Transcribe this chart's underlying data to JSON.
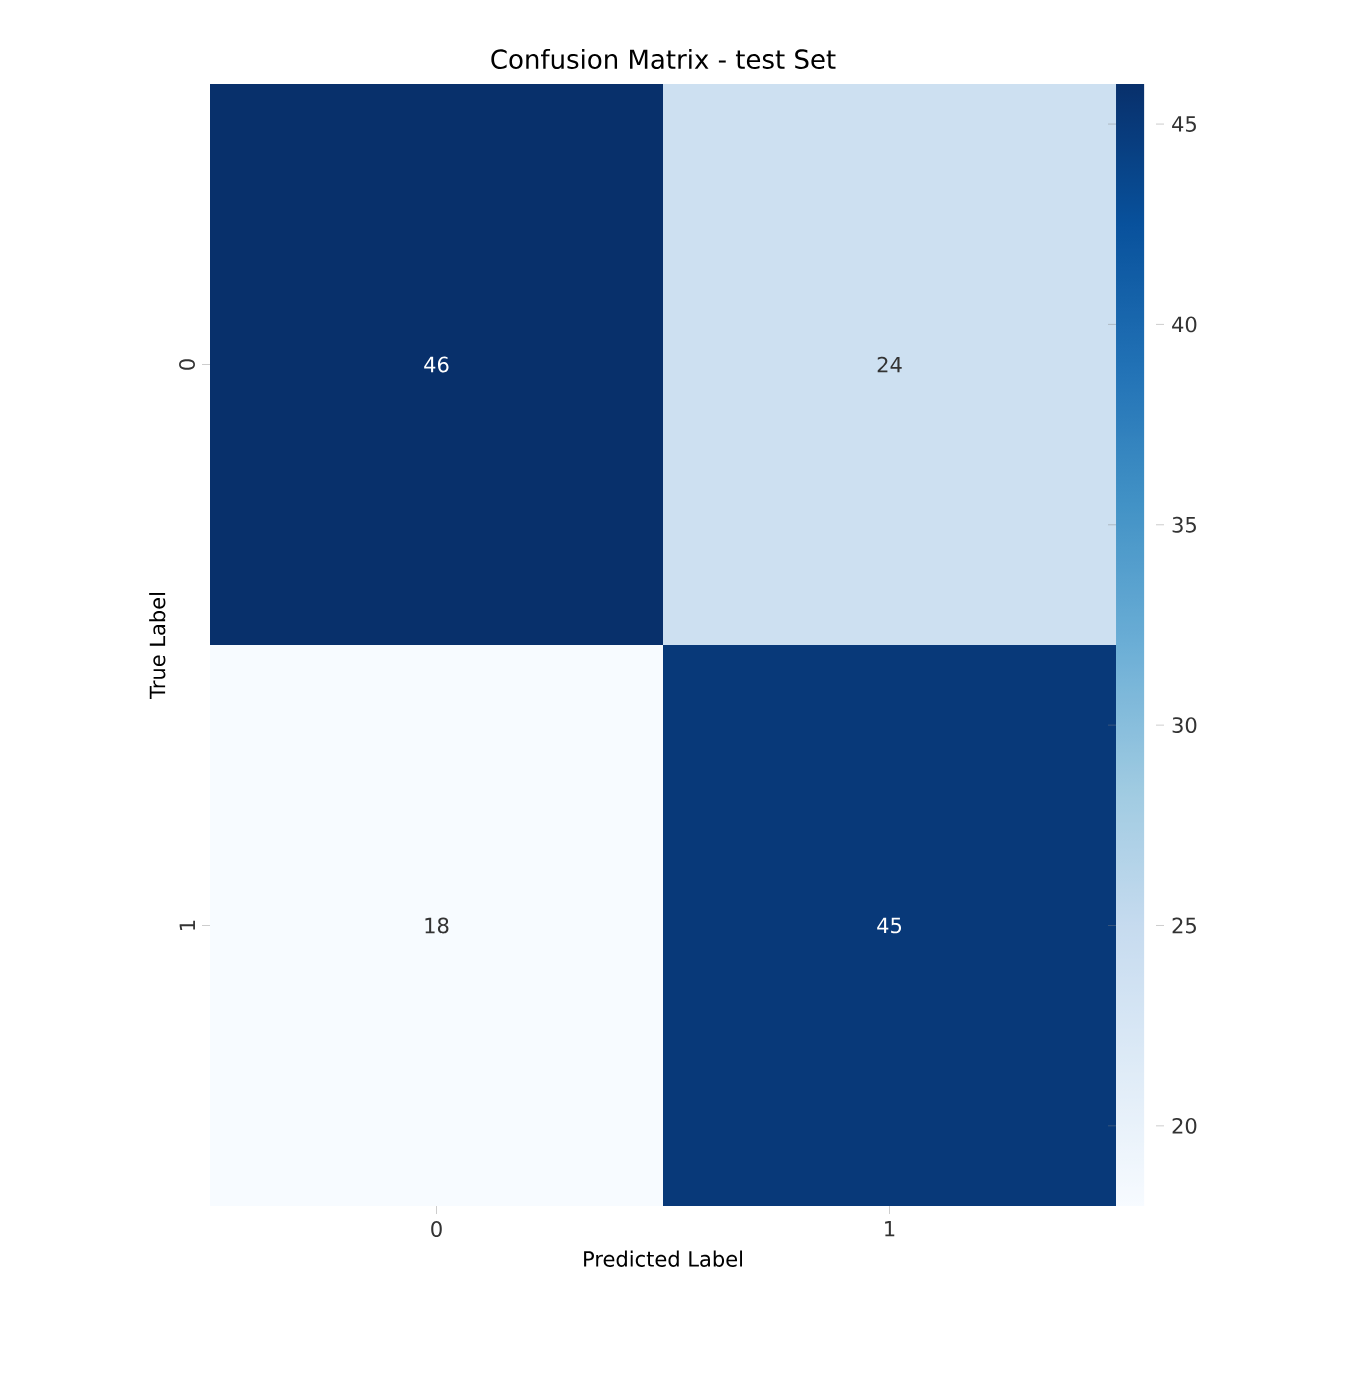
{
  "chart_data": {
    "type": "heatmap",
    "title": "Confusion Matrix - test Set",
    "xlabel": "Predicted Label",
    "ylabel": "True Label",
    "categories": [
      "0",
      "1"
    ],
    "y_categories": [
      "0",
      "1"
    ],
    "cells": [
      [
        46,
        24
      ],
      [
        18,
        45
      ]
    ],
    "cell_labels": [
      [
        "46",
        "24"
      ],
      [
        "18",
        "45"
      ]
    ],
    "clim": [
      18,
      46
    ],
    "cticks": [
      20,
      25,
      30,
      35,
      40,
      45
    ]
  }
}
